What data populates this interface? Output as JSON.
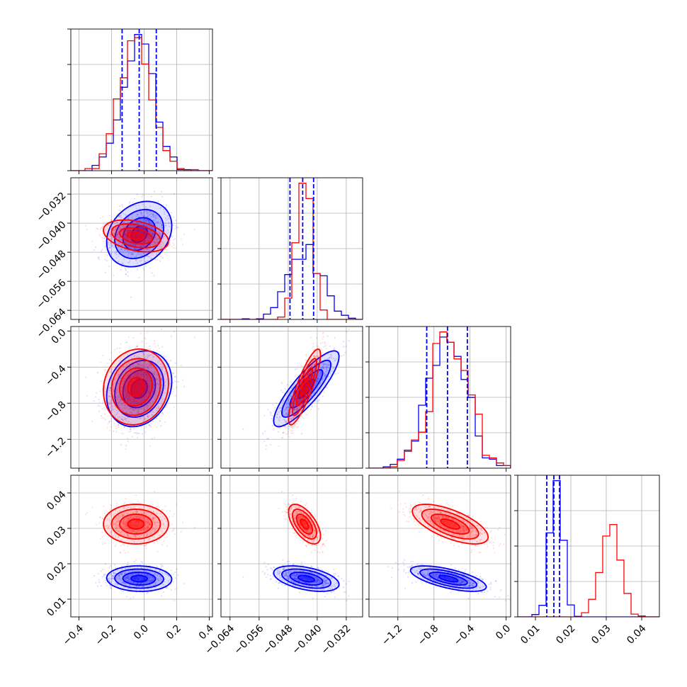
{
  "colors": {
    "blue": "#0000ff",
    "red": "#ff0000",
    "grid": "#b0b0b0"
  },
  "chart_data": {
    "type": "corner",
    "grid": true,
    "parameters": [
      {
        "id": "p0",
        "range": [
          -0.45,
          0.42
        ],
        "ticks": [
          -0.4,
          -0.2,
          0.0,
          0.2,
          0.4
        ],
        "tick_labels": [
          "−0.4",
          "−0.2",
          "0.0",
          "0.2",
          "0.4"
        ]
      },
      {
        "id": "p1",
        "range": [
          -0.0665,
          -0.0275
        ],
        "ticks": [
          -0.064,
          -0.056,
          -0.048,
          -0.04,
          -0.032
        ],
        "tick_labels": [
          "−0.064",
          "−0.056",
          "−0.048",
          "−0.040",
          "−0.032"
        ]
      },
      {
        "id": "p2",
        "range": [
          -1.52,
          0.05
        ],
        "ticks": [
          -1.2,
          -0.8,
          -0.4,
          0.0
        ],
        "tick_labels": [
          "−1.2",
          "−0.8",
          "−0.4",
          "0.0"
        ]
      },
      {
        "id": "p3",
        "range": [
          0.005,
          0.045
        ],
        "ticks": [
          0.01,
          0.02,
          0.03,
          0.04
        ],
        "tick_labels": [
          "0.01",
          "0.02",
          "0.03",
          "0.04"
        ]
      }
    ],
    "series": [
      {
        "color": "#0000ff",
        "mean": [
          -0.03,
          -0.043,
          -0.64,
          0.0158
        ],
        "std": [
          0.1,
          0.0045,
          0.21,
          0.0018
        ],
        "corr": [
          [
            1,
            0.25,
            0.2,
            -0.05
          ],
          [
            0.25,
            1,
            0.85,
            -0.45
          ],
          [
            0.2,
            0.85,
            1,
            -0.65
          ],
          [
            -0.05,
            -0.45,
            -0.65,
            1
          ]
        ],
        "quantiles": [
          [
            -0.135,
            -0.03,
            0.075
          ],
          [
            -0.0475,
            -0.044,
            -0.041
          ],
          [
            -0.88,
            -0.65,
            -0.43
          ],
          [
            0.0132,
            0.0152,
            0.0168
          ]
        ]
      },
      {
        "color": "#ff0000",
        "mean": [
          -0.05,
          -0.0435,
          -0.62,
          0.0312
        ],
        "std": [
          0.1,
          0.0022,
          0.21,
          0.0028
        ],
        "corr": [
          [
            1,
            -0.35,
            0.1,
            0.0
          ],
          [
            -0.35,
            1,
            0.85,
            -0.6
          ],
          [
            0.1,
            0.85,
            1,
            -0.65
          ],
          [
            0.0,
            -0.6,
            -0.65,
            1
          ]
        ]
      }
    ]
  }
}
